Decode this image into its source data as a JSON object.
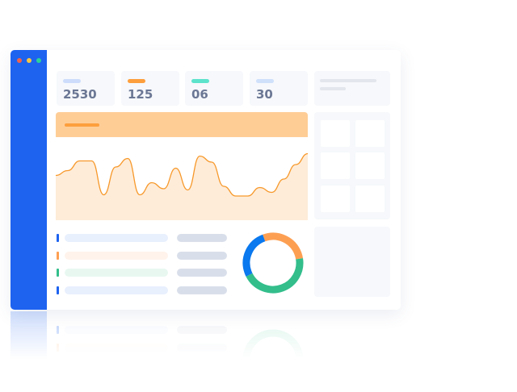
{
  "window_dots": [
    "#f2644b",
    "#f7c743",
    "#2bd39a"
  ],
  "stats": [
    {
      "value": "2530",
      "color": "#cddcfa"
    },
    {
      "value": "125",
      "color": "#fd9f3d"
    },
    {
      "value": "06",
      "color": "#5de3cc"
    },
    {
      "value": "30",
      "color": "#cfe0fb"
    }
  ],
  "colors": {
    "sidebar": "#1e63f0",
    "banner": "#fecd96",
    "line": "#f7982a",
    "fill": "#feecd8"
  },
  "sparkline": {
    "type": "area",
    "values": [
      29,
      33,
      41,
      41,
      13,
      36,
      43,
      13,
      23,
      18,
      35,
      17,
      45,
      40,
      20,
      12,
      12,
      19,
      15,
      26,
      38,
      47
    ]
  },
  "list_rows": [
    {
      "mark": "#1e63f0",
      "bar": "#e8effd"
    },
    {
      "mark": "#fd9f52",
      "bar": "#fff3ec"
    },
    {
      "mark": "#33be8c",
      "bar": "#e8f8f1"
    },
    {
      "mark": "#1e63f0",
      "bar": "#e8effd"
    }
  ],
  "donut": {
    "segments": [
      {
        "value": 28,
        "color": "#fd9f52"
      },
      {
        "value": 45,
        "color": "#33be8c"
      },
      {
        "value": 27,
        "color": "#0a78ee"
      }
    ]
  }
}
